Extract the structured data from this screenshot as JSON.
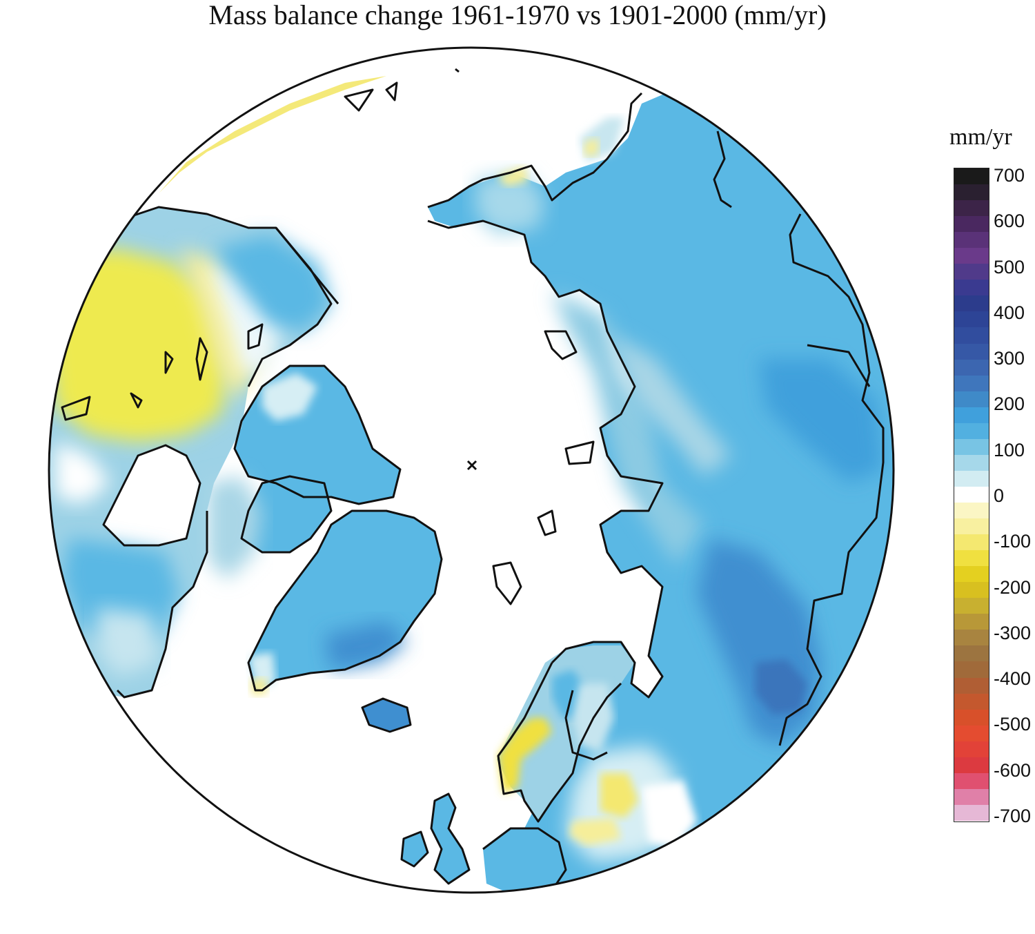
{
  "figure": {
    "title": "Mass balance change 1961-1970 vs 1901-2000 (mm/yr)"
  },
  "legend": {
    "units": "mm/yr",
    "ticks": [
      "700",
      "600",
      "500",
      "400",
      "300",
      "200",
      "100",
      "0",
      "-100",
      "-200",
      "-300",
      "-400",
      "-500",
      "-600",
      "-700"
    ],
    "scale_colors": [
      "#1a1a1a",
      "#2a2030",
      "#3c2448",
      "#4a2860",
      "#5a3278",
      "#6a3a8a",
      "#503a8a",
      "#3a3a90",
      "#2c3c8c",
      "#2d4496",
      "#314d9e",
      "#3658a6",
      "#3c66b0",
      "#3f76bc",
      "#3f8ac8",
      "#40a0dc",
      "#52b0e0",
      "#78c4e4",
      "#a6d8ea",
      "#d2ecf2",
      "#ffffff",
      "#fbf6c4",
      "#f8f0a0",
      "#f4e870",
      "#f0e040",
      "#e4d020",
      "#d8c020",
      "#c8b030",
      "#b89838",
      "#a88440",
      "#9c7440",
      "#a06a3a",
      "#b05e34",
      "#c4582e",
      "#d8502a",
      "#e44c30",
      "#e24238",
      "#dc3a40",
      "#e05070",
      "#e080a8",
      "#e6b8d6"
    ]
  },
  "map": {
    "projection": "north-polar-stereographic",
    "field": "mass-balance-change",
    "palette": {
      "land_outline": "#111111",
      "ocean": "#ffffff",
      "strong_positive": "#3f8fd0",
      "positive": "#5ab8e4",
      "weak_positive": "#9dd2e6",
      "near_zero": "#d6eef4",
      "weak_negative": "#f6ee9a",
      "negative": "#eeea50"
    }
  }
}
